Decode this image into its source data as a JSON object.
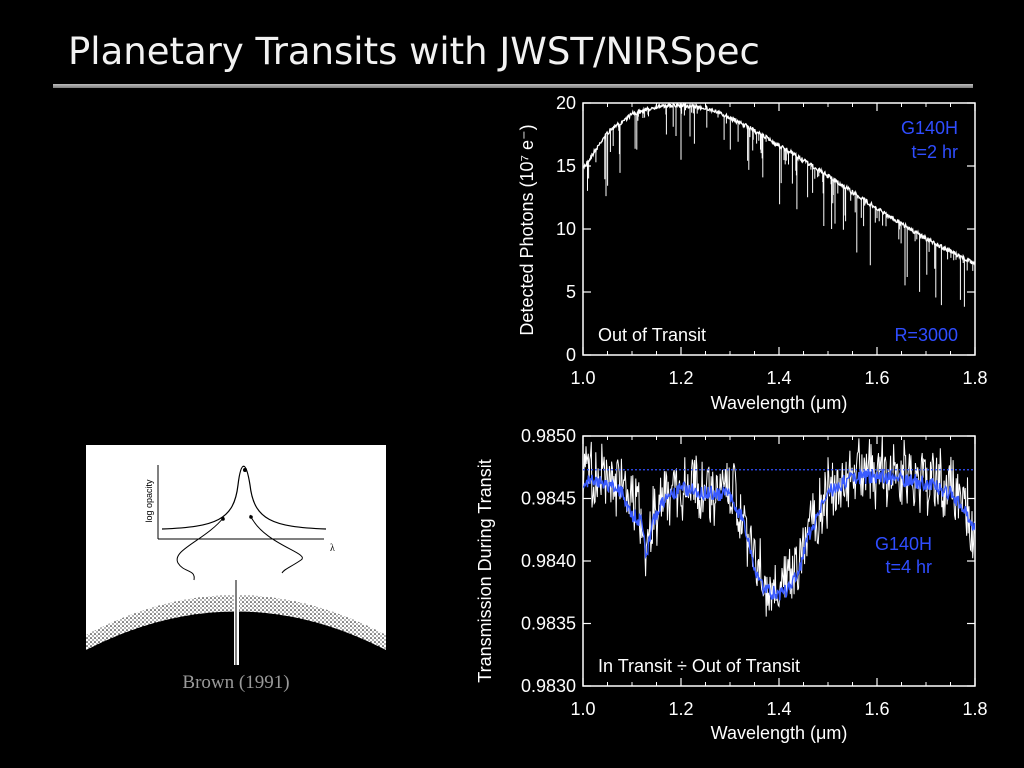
{
  "slide": {
    "title": "Planetary Transits with JWST/NIRSpec",
    "figure_caption": "Brown (1991)",
    "figure_labels": {
      "ylabel": "log opacity",
      "xlabel": "λ"
    }
  },
  "colors": {
    "background": "#000000",
    "model": "#3a5bff",
    "data": "#ffffff",
    "annotation": "#2f4dff"
  },
  "chart_data": [
    {
      "type": "line",
      "title": "",
      "xlabel": "Wavelength (μm)",
      "ylabel": "Detected Photons  (10⁷ e⁻)",
      "xlim": [
        1.0,
        1.8
      ],
      "ylim": [
        0,
        20
      ],
      "x_ticks": [
        "1.0",
        "1.2",
        "1.4",
        "1.6",
        "1.8"
      ],
      "y_ticks": [
        "0",
        "5",
        "10",
        "15",
        "20"
      ],
      "grid": false,
      "annotations": {
        "top_right_1": "G140H",
        "top_right_2": "t=2 hr",
        "bottom_left": "Out of Transit",
        "bottom_right": "R=3000"
      },
      "series": [
        {
          "x": [
            1.0,
            1.05,
            1.1,
            1.15,
            1.2,
            1.25,
            1.3,
            1.35,
            1.4,
            1.45,
            1.5,
            1.55,
            1.6,
            1.65,
            1.7,
            1.75,
            1.8
          ],
          "values": [
            15.0,
            17.8,
            19.3,
            19.9,
            20.0,
            19.8,
            19.0,
            18.0,
            16.8,
            15.6,
            14.4,
            13.1,
            11.8,
            10.6,
            9.4,
            8.4,
            7.4
          ]
        }
      ]
    },
    {
      "type": "line",
      "title": "",
      "xlabel": "Wavelength (μm)",
      "ylabel": "Transmission During Transit",
      "xlim": [
        1.0,
        1.8
      ],
      "ylim": [
        0.983,
        0.985
      ],
      "x_ticks": [
        "1.0",
        "1.2",
        "1.4",
        "1.6",
        "1.8"
      ],
      "y_ticks": [
        "0.9830",
        "0.9835",
        "0.9840",
        "0.9845",
        "0.9850"
      ],
      "grid": false,
      "annotations": {
        "mid_right_1": "G140H",
        "mid_right_2": "t=4 hr",
        "bottom_left": "In Transit ÷ Out of Transit"
      },
      "reference_level": 0.98473,
      "series": [
        {
          "x": [
            1.0,
            1.04,
            1.08,
            1.1,
            1.12,
            1.13,
            1.14,
            1.16,
            1.2,
            1.25,
            1.3,
            1.33,
            1.35,
            1.37,
            1.4,
            1.42,
            1.44,
            1.46,
            1.5,
            1.55,
            1.6,
            1.65,
            1.7,
            1.75,
            1.78,
            1.8
          ],
          "values": [
            0.98465,
            0.98462,
            0.98455,
            0.98437,
            0.98432,
            0.984,
            0.9843,
            0.98445,
            0.98458,
            0.98455,
            0.98453,
            0.9843,
            0.98395,
            0.98378,
            0.98372,
            0.98378,
            0.9839,
            0.9842,
            0.98455,
            0.98467,
            0.98468,
            0.98466,
            0.98462,
            0.98455,
            0.9844,
            0.98425
          ]
        }
      ]
    }
  ]
}
